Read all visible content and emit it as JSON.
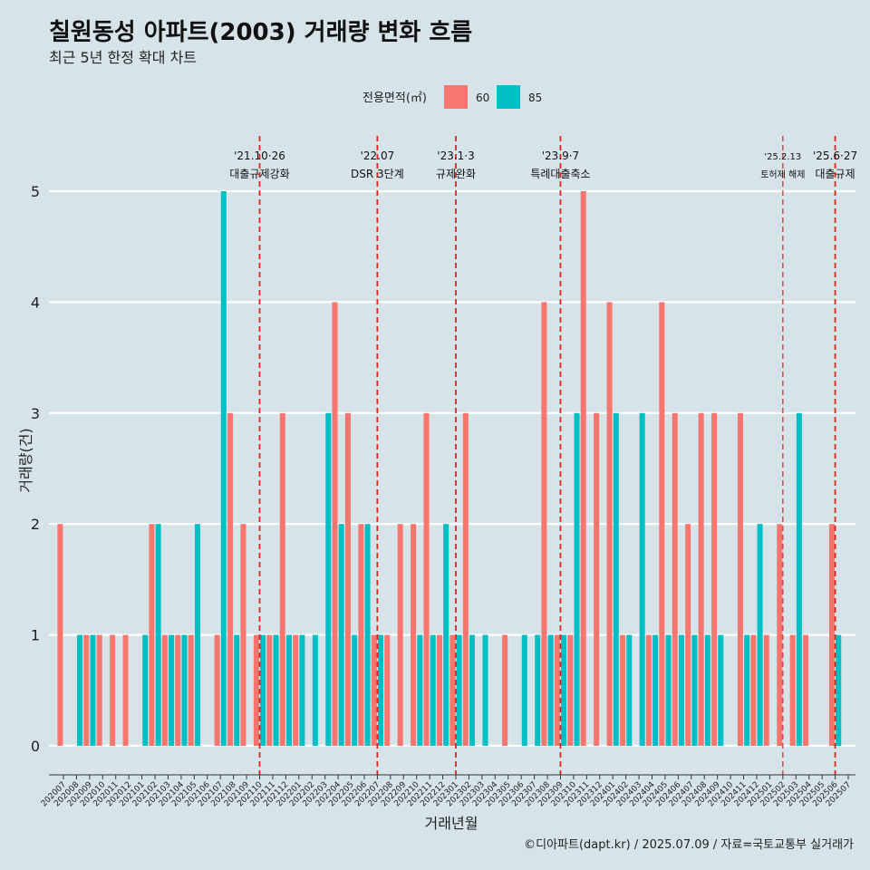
{
  "chart_data": {
    "type": "bar",
    "title": "칠원동성 아파트(2003) 거래량 변화 흐름",
    "subtitle": "최근 5년 한정 확대 차트",
    "xlabel": "거래년월",
    "ylabel": "거래량(건)",
    "caption": "©디아파트(dapt.kr) / 2025.07.09 / 자료=국토교통부 실거래가",
    "legend": {
      "title": "전용면적(㎡)",
      "position": "top",
      "entries": [
        {
          "name": "60",
          "color": "#f8766d"
        },
        {
          "name": "85",
          "color": "#00bfc4"
        }
      ]
    },
    "ylim": [
      0,
      5
    ],
    "yticks": [
      "0",
      "1",
      "2",
      "3",
      "4",
      "5"
    ],
    "categories": [
      "202007",
      "202008",
      "202009",
      "202010",
      "202011",
      "202012",
      "202101",
      "202102",
      "202103",
      "202104",
      "202105",
      "202106",
      "202107",
      "202108",
      "202109",
      "202110",
      "202111",
      "202112",
      "202201",
      "202202",
      "202203",
      "202204",
      "202205",
      "202206",
      "202207",
      "202208",
      "202209",
      "202210",
      "202211",
      "202212",
      "202301",
      "202302",
      "202303",
      "202304",
      "202305",
      "202306",
      "202307",
      "202308",
      "202309",
      "202310",
      "202311",
      "202312",
      "202401",
      "202402",
      "202403",
      "202404",
      "202405",
      "202406",
      "202407",
      "202408",
      "202409",
      "202410",
      "202411",
      "202412",
      "202501",
      "202502",
      "202503",
      "202504",
      "202505",
      "202506",
      "202507"
    ],
    "series": [
      {
        "name": "60",
        "color": "#f8766d",
        "values": [
          2,
          0,
          1,
          1,
          1,
          1,
          0,
          2,
          1,
          1,
          1,
          0,
          1,
          3,
          2,
          1,
          1,
          3,
          1,
          0,
          0,
          4,
          3,
          2,
          1,
          1,
          2,
          2,
          3,
          1,
          1,
          3,
          0,
          0,
          1,
          0,
          0,
          4,
          1,
          1,
          5,
          3,
          4,
          1,
          0,
          1,
          4,
          3,
          2,
          3,
          3,
          0,
          3,
          1,
          1,
          2,
          1,
          1,
          0,
          2,
          0
        ]
      },
      {
        "name": "85",
        "color": "#00bfc4",
        "values": [
          0,
          1,
          1,
          0,
          0,
          0,
          1,
          2,
          1,
          1,
          2,
          0,
          5,
          1,
          0,
          1,
          1,
          1,
          1,
          1,
          3,
          2,
          1,
          2,
          1,
          0,
          0,
          1,
          1,
          2,
          1,
          1,
          1,
          0,
          0,
          1,
          1,
          1,
          1,
          3,
          0,
          0,
          3,
          1,
          3,
          1,
          1,
          1,
          1,
          1,
          1,
          0,
          1,
          2,
          0,
          0,
          3,
          0,
          0,
          1,
          0
        ]
      }
    ],
    "annotations": [
      {
        "category": "202110",
        "date": "'21.10·26",
        "label": "대출규제강화"
      },
      {
        "category": "202207",
        "date": "'22.07",
        "label": "DSR 3단계"
      },
      {
        "category": "202301",
        "date": "'23.1·3",
        "label": "규제완화"
      },
      {
        "category": "202309",
        "date": "'23.9·7",
        "label": "특례대출축소"
      },
      {
        "category": "202502",
        "date": "'25.2.13",
        "label": "토허제 해제"
      },
      {
        "category": "202506",
        "date": "'25.6·27",
        "label": "대출규제"
      }
    ]
  }
}
